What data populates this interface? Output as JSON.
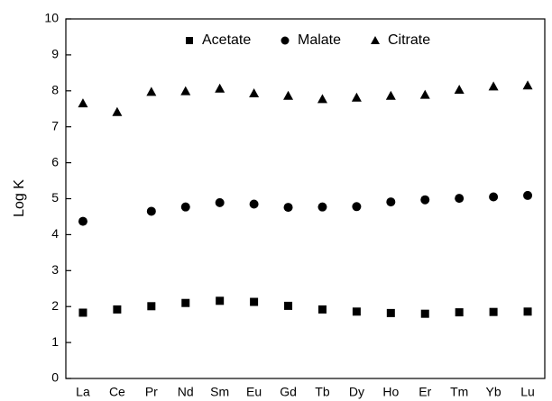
{
  "chart_data": {
    "type": "scatter",
    "y_label": "Log K",
    "categories": [
      "La",
      "Ce",
      "Pr",
      "Nd",
      "Sm",
      "Eu",
      "Gd",
      "Tb",
      "Dy",
      "Ho",
      "Er",
      "Tm",
      "Yb",
      "Lu"
    ],
    "series": [
      {
        "name": "Acetate",
        "color": "#000000",
        "marker": "square",
        "values": [
          1.83,
          1.92,
          2.01,
          2.1,
          2.16,
          2.13,
          2.02,
          1.92,
          1.86,
          1.82,
          1.8,
          1.84,
          1.85,
          1.86
        ]
      },
      {
        "name": "Malate",
        "color": "#000000",
        "marker": "circle",
        "values": [
          4.37,
          null,
          4.65,
          4.77,
          4.89,
          4.85,
          4.76,
          4.77,
          4.78,
          4.91,
          4.97,
          5.01,
          5.05,
          5.09
        ]
      },
      {
        "name": "Citrate",
        "color": "#000000",
        "marker": "triangle",
        "values": [
          7.64,
          7.4,
          7.96,
          7.98,
          8.05,
          7.92,
          7.85,
          7.76,
          7.8,
          7.85,
          7.88,
          8.02,
          8.11,
          8.14
        ]
      }
    ],
    "ylim": [
      0,
      10
    ],
    "yticks": [
      0,
      1,
      2,
      3,
      4,
      5,
      6,
      7,
      8,
      9,
      10
    ],
    "legend": "top"
  }
}
